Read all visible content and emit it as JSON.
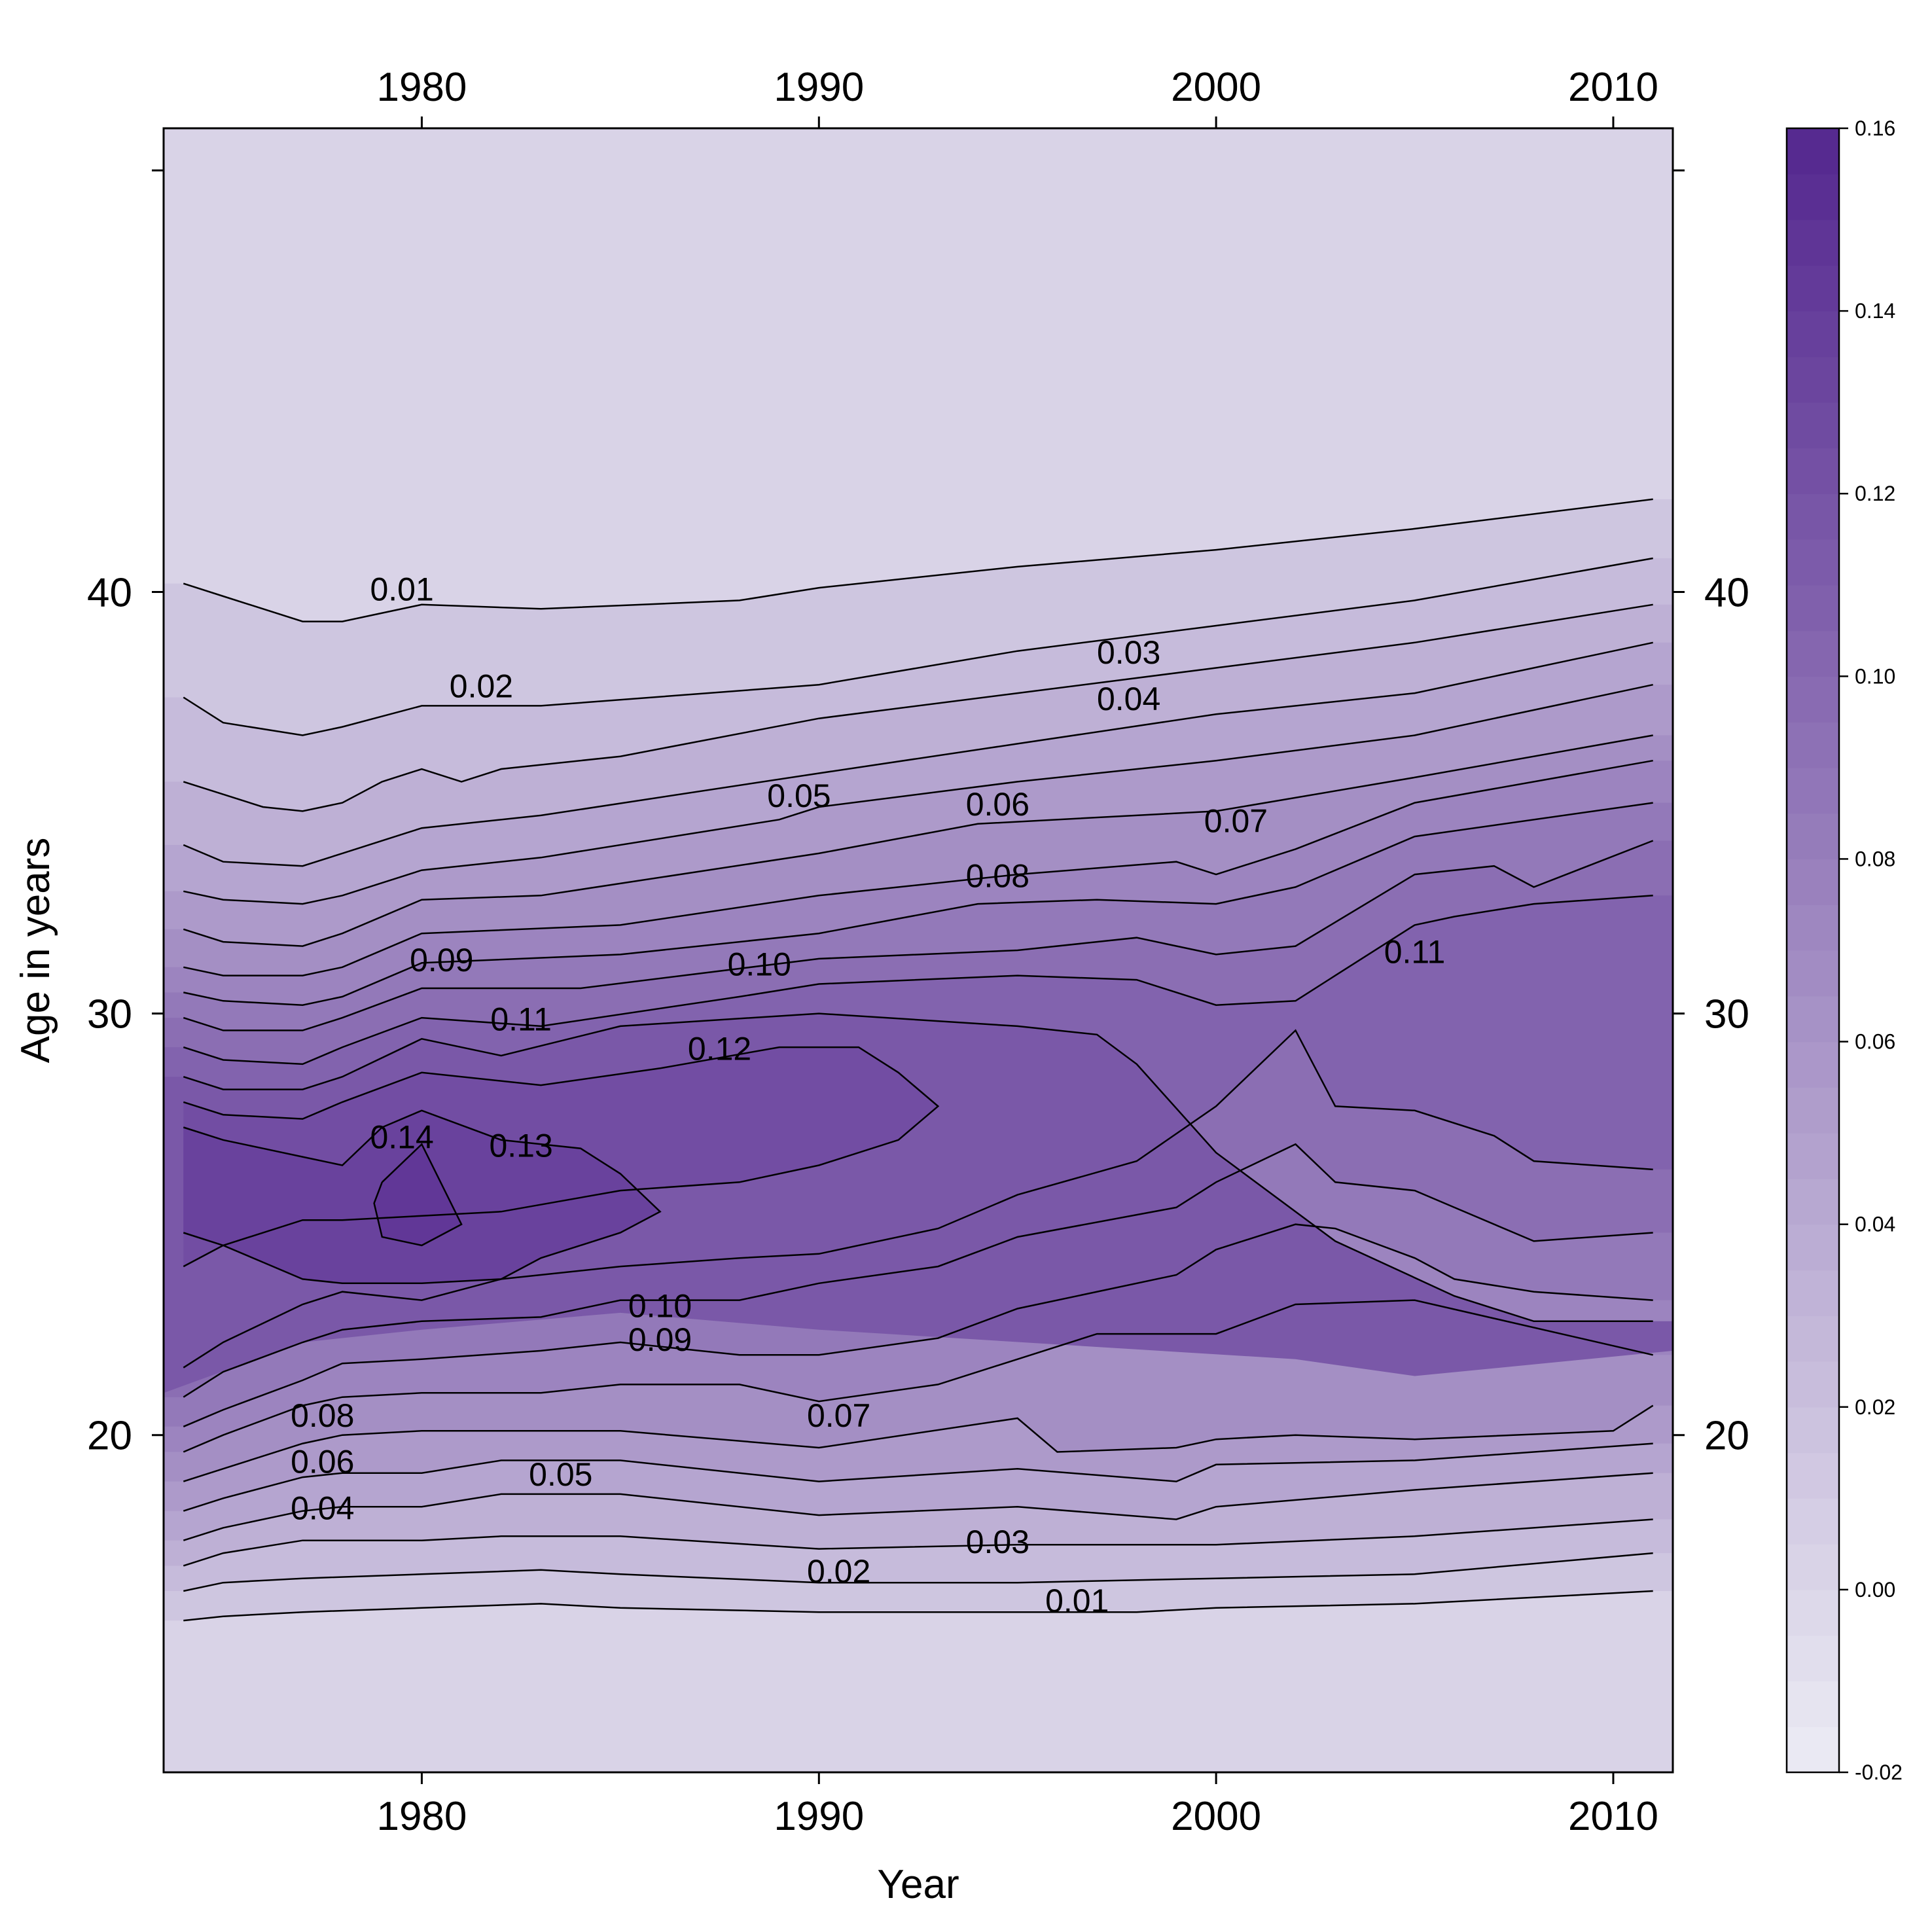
{
  "chart_data": {
    "type": "heatmap",
    "subtype": "contour-filled level plot",
    "xlabel": "Year",
    "ylabel": "Age in years",
    "xlim": [
      1973.5,
      2011.5
    ],
    "ylim": [
      12,
      51
    ],
    "x_ticks": [
      1980,
      1990,
      2000,
      2010
    ],
    "x_tick_labels": [
      "1980",
      "1990",
      "2000",
      "2010"
    ],
    "y_ticks": [
      20,
      30,
      40,
      50
    ],
    "y_tick_labels": [
      "20",
      "30",
      "40",
      ""
    ],
    "colorkey": {
      "position": "right",
      "range": [
        -0.02,
        0.16
      ],
      "ticks": [
        0.16,
        0.14,
        0.12,
        0.1,
        0.08,
        0.06,
        0.04,
        0.02,
        0.0,
        -0.02
      ],
      "tick_labels": [
        "0.16",
        "0.14",
        "0.12",
        "0.10",
        "0.08",
        "0.06",
        "0.04",
        "0.02",
        "0.00",
        "-0.02"
      ],
      "color_low": "#ececf4",
      "color_high": "#54278f"
    },
    "contours": [
      {
        "level": 0.01,
        "label": "0.01",
        "x": [
          1974,
          1975,
          1977,
          1978,
          1980,
          1983,
          1988,
          1990,
          1995,
          2000,
          2005,
          2011
        ],
        "y": [
          40.2,
          39.9,
          39.3,
          39.3,
          39.7,
          39.6,
          39.8,
          40.1,
          40.6,
          41.0,
          41.5,
          42.2
        ]
      },
      {
        "level": 0.02,
        "label": "0.02",
        "x": [
          1974,
          1975,
          1977,
          1978,
          1980,
          1983,
          1990,
          1995,
          2000,
          2005,
          2011
        ],
        "y": [
          37.5,
          36.9,
          36.6,
          36.8,
          37.3,
          37.3,
          37.8,
          38.6,
          39.2,
          39.8,
          40.8
        ]
      },
      {
        "level": 0.03,
        "label": "0.03",
        "x": [
          1974,
          1975,
          1976,
          1977,
          1978,
          1979,
          1980,
          1981,
          1982,
          1985,
          1990,
          1995,
          2000,
          2005,
          2011
        ],
        "y": [
          35.5,
          35.2,
          34.9,
          34.8,
          35.0,
          35.5,
          35.8,
          35.5,
          35.8,
          36.1,
          37.0,
          37.6,
          38.2,
          38.8,
          39.7
        ]
      },
      {
        "level": 0.04,
        "label": "0.04",
        "x": [
          1974,
          1975,
          1977,
          1978,
          1980,
          1983,
          1990,
          1995,
          2000,
          2005,
          2011
        ],
        "y": [
          34.0,
          33.6,
          33.5,
          33.8,
          34.4,
          34.7,
          35.7,
          36.4,
          37.1,
          37.6,
          38.8
        ]
      },
      {
        "level": 0.05,
        "label": "0.05",
        "x": [
          1974,
          1975,
          1977,
          1978,
          1980,
          1983,
          1989,
          1990,
          1995,
          2000,
          2005,
          2011
        ],
        "y": [
          32.9,
          32.7,
          32.6,
          32.8,
          33.4,
          33.7,
          34.6,
          34.9,
          35.5,
          36.0,
          36.6,
          37.8
        ]
      },
      {
        "level": 0.06,
        "label": "0.06",
        "x": [
          1974,
          1975,
          1977,
          1978,
          1980,
          1983,
          1990,
          1994,
          2000,
          2005,
          2011
        ],
        "y": [
          32.0,
          31.7,
          31.6,
          31.9,
          32.7,
          32.8,
          33.8,
          34.5,
          34.8,
          35.6,
          36.6
        ]
      },
      {
        "level": 0.07,
        "label": "0.07",
        "x": [
          1974,
          1975,
          1977,
          1978,
          1980,
          1985,
          1990,
          1995,
          1999,
          2000,
          2002,
          2005,
          2011
        ],
        "y": [
          31.1,
          30.9,
          30.9,
          31.1,
          31.9,
          32.1,
          32.8,
          33.3,
          33.6,
          33.3,
          33.9,
          35.0,
          36.0
        ]
      },
      {
        "level": 0.08,
        "label": "0.08",
        "x": [
          1974,
          1975,
          1977,
          1978,
          1980,
          1985,
          1990,
          1994,
          1997,
          2000,
          2002,
          2005,
          2011
        ],
        "y": [
          30.5,
          30.3,
          30.2,
          30.4,
          31.2,
          31.4,
          31.9,
          32.6,
          32.7,
          32.6,
          33.0,
          34.2,
          35.0
        ]
      },
      {
        "level": 0.09,
        "label": "0.09",
        "x": [
          1974,
          1975,
          1977,
          1978,
          1980,
          1984,
          1990,
          1995,
          1998,
          2000,
          2002,
          2005,
          2007,
          2008,
          2011
        ],
        "y": [
          29.9,
          29.6,
          29.6,
          29.9,
          30.6,
          30.6,
          31.3,
          31.5,
          31.8,
          31.4,
          31.6,
          33.3,
          33.5,
          33.0,
          34.1
        ]
      },
      {
        "level": 0.1,
        "label": "0.10",
        "x": [
          1974,
          1975,
          1977,
          1978,
          1980,
          1983,
          1988,
          1990,
          1995,
          1998,
          2000,
          2002,
          2003,
          2005,
          2006,
          2008,
          2011
        ],
        "y": [
          29.2,
          28.9,
          28.8,
          29.2,
          29.9,
          29.7,
          30.4,
          30.7,
          30.9,
          30.8,
          30.2,
          30.3,
          30.9,
          32.1,
          32.3,
          32.6,
          32.8
        ]
      },
      {
        "level": 0.11,
        "label": "0.11",
        "x": [
          1974,
          1975,
          1977,
          1978,
          1980,
          1982,
          1985,
          1990,
          1995,
          1997,
          1998,
          2000,
          2003,
          2006,
          2008,
          2011
        ],
        "y": [
          28.5,
          28.2,
          28.2,
          28.5,
          29.4,
          29.0,
          29.7,
          30.0,
          29.7,
          29.5,
          28.8,
          26.7,
          24.6,
          23.3,
          22.7,
          22.7
        ]
      },
      {
        "level": 0.12,
        "label": "0.12",
        "x": [
          1974,
          1975,
          1977,
          1978,
          1980,
          1983,
          1986,
          1989,
          1991,
          1992,
          1993,
          1992,
          1990,
          1988,
          1985,
          1982,
          1980,
          1978,
          1977,
          1975,
          1974
        ],
        "y": [
          27.9,
          27.6,
          27.5,
          27.9,
          28.6,
          28.3,
          28.7,
          29.2,
          29.2,
          28.6,
          27.8,
          27.0,
          26.4,
          26.0,
          25.8,
          25.3,
          25.2,
          25.1,
          25.1,
          24.5,
          24.0
        ]
      },
      {
        "level": 0.13,
        "label": "0.13",
        "x": [
          1974,
          1975,
          1976,
          1977,
          1978,
          1979,
          1980,
          1982,
          1984,
          1985,
          1986,
          1985,
          1983,
          1982,
          1980,
          1979,
          1978,
          1977,
          1976,
          1975,
          1974
        ],
        "y": [
          27.3,
          27.0,
          26.8,
          26.6,
          26.4,
          27.3,
          27.7,
          27.0,
          26.8,
          26.2,
          25.3,
          24.8,
          24.2,
          23.7,
          23.6,
          23.6,
          23.6,
          23.7,
          24.1,
          24.5,
          24.8
        ]
      },
      {
        "level": 0.14,
        "label": "0.14",
        "x": [
          1979,
          1980,
          1981,
          1980,
          1979,
          1978.8,
          1979
        ],
        "y": [
          26.0,
          26.9,
          25.0,
          24.5,
          24.7,
          25.5,
          26.0
        ]
      }
    ],
    "contour_labels": [
      {
        "text": "0.01",
        "x": 1979.5,
        "y": 39.8
      },
      {
        "text": "0.02",
        "x": 1981.5,
        "y": 37.5
      },
      {
        "text": "0.03",
        "x": 1997.8,
        "y": 38.3
      },
      {
        "text": "0.04",
        "x": 1997.8,
        "y": 37.2
      },
      {
        "text": "0.05",
        "x": 1989.5,
        "y": 34.9
      },
      {
        "text": "0.06",
        "x": 1994.5,
        "y": 34.7
      },
      {
        "text": "0.07",
        "x": 2000.5,
        "y": 34.3
      },
      {
        "text": "0.08",
        "x": 1994.5,
        "y": 33.0
      },
      {
        "text": "0.09",
        "x": 1980.5,
        "y": 31.0
      },
      {
        "text": "0.10",
        "x": 1988.5,
        "y": 30.9
      },
      {
        "text": "0.11",
        "x": 1982.5,
        "y": 29.6
      },
      {
        "text": "0.12",
        "x": 1987.5,
        "y": 28.9
      },
      {
        "text": "0.14",
        "x": 1979.5,
        "y": 26.8
      },
      {
        "text": "0.13",
        "x": 1982.5,
        "y": 26.6
      },
      {
        "text": "0.11",
        "x": 2005.0,
        "y": 31.2
      },
      {
        "text": "0.10",
        "x": 1986.0,
        "y": 22.8
      },
      {
        "text": "0.09",
        "x": 1986.0,
        "y": 22.0
      },
      {
        "text": "0.08",
        "x": 1977.5,
        "y": 20.2
      },
      {
        "text": "0.07",
        "x": 1990.5,
        "y": 20.2
      },
      {
        "text": "0.06",
        "x": 1977.5,
        "y": 19.1
      },
      {
        "text": "0.05",
        "x": 1983.5,
        "y": 18.8
      },
      {
        "text": "0.04",
        "x": 1977.5,
        "y": 18.0
      },
      {
        "text": "0.03",
        "x": 1994.5,
        "y": 17.2
      },
      {
        "text": "0.02",
        "x": 1990.5,
        "y": 16.5
      },
      {
        "text": "0.01",
        "x": 1996.5,
        "y": 15.8
      }
    ],
    "lower_contours": [
      {
        "level": 0.01,
        "x": [
          1974,
          1975,
          1977,
          1980,
          1983,
          1985,
          1990,
          1995,
          1998,
          2000,
          2005,
          2011
        ],
        "y": [
          15.6,
          15.7,
          15.8,
          15.9,
          16.0,
          15.9,
          15.8,
          15.8,
          15.8,
          15.9,
          16.0,
          16.3
        ]
      },
      {
        "level": 0.02,
        "x": [
          1974,
          1975,
          1977,
          1980,
          1983,
          1985,
          1990,
          1995,
          2000,
          2005,
          2011
        ],
        "y": [
          16.3,
          16.5,
          16.6,
          16.7,
          16.8,
          16.7,
          16.5,
          16.5,
          16.6,
          16.7,
          17.2
        ]
      },
      {
        "level": 0.03,
        "x": [
          1974,
          1975,
          1977,
          1980,
          1982,
          1985,
          1990,
          1995,
          2000,
          2005,
          2011
        ],
        "y": [
          16.9,
          17.2,
          17.5,
          17.5,
          17.6,
          17.6,
          17.3,
          17.4,
          17.4,
          17.6,
          18.0
        ]
      },
      {
        "level": 0.04,
        "x": [
          1974,
          1975,
          1977,
          1978,
          1980,
          1982,
          1985,
          1990,
          1995,
          1999,
          2000,
          2005,
          2011
        ],
        "y": [
          17.5,
          17.8,
          18.2,
          18.3,
          18.3,
          18.6,
          18.6,
          18.1,
          18.3,
          18.0,
          18.3,
          18.7,
          19.1
        ]
      },
      {
        "level": 0.05,
        "x": [
          1974,
          1975,
          1977,
          1978,
          1980,
          1982,
          1985,
          1990,
          1995,
          1999,
          2000,
          2005,
          2011
        ],
        "y": [
          18.2,
          18.5,
          19.0,
          19.1,
          19.1,
          19.4,
          19.4,
          18.9,
          19.2,
          18.9,
          19.3,
          19.4,
          19.8
        ]
      },
      {
        "level": 0.06,
        "x": [
          1974,
          1975,
          1977,
          1978,
          1980,
          1985,
          1990,
          1995,
          1996,
          1999,
          2000,
          2002,
          2005,
          2010,
          2011
        ],
        "y": [
          18.9,
          19.2,
          19.8,
          20.0,
          20.1,
          20.1,
          19.7,
          20.4,
          19.6,
          19.7,
          19.9,
          20.0,
          19.9,
          20.1,
          20.7
        ]
      },
      {
        "level": 0.07,
        "x": [
          1974,
          1975,
          1977,
          1978,
          1980,
          1983,
          1985,
          1988,
          1990,
          1993,
          1995,
          1997,
          1999,
          2000,
          2002,
          2005,
          2011
        ],
        "y": [
          19.6,
          20.0,
          20.7,
          20.9,
          21.0,
          21.0,
          21.2,
          21.2,
          20.8,
          21.2,
          21.8,
          22.4,
          22.4,
          22.4,
          23.1,
          23.2,
          21.9
        ]
      },
      {
        "level": 0.08,
        "x": [
          1974,
          1975,
          1977,
          1978,
          1980,
          1983,
          1985,
          1988,
          1990,
          1993,
          1995,
          1999,
          2000,
          2002,
          2003,
          2005,
          2006,
          2008,
          2011
        ],
        "y": [
          20.2,
          20.6,
          21.3,
          21.7,
          21.8,
          22.0,
          22.2,
          21.9,
          21.9,
          22.3,
          23.0,
          23.8,
          24.4,
          25.0,
          24.9,
          24.2,
          23.7,
          23.4,
          23.2
        ]
      },
      {
        "level": 0.09,
        "x": [
          1974,
          1975,
          1977,
          1978,
          1980,
          1983,
          1985,
          1988,
          1990,
          1993,
          1995,
          1999,
          2000,
          2002,
          2003,
          2005,
          2006,
          2008,
          2011
        ],
        "y": [
          20.9,
          21.5,
          22.2,
          22.5,
          22.7,
          22.8,
          23.2,
          23.2,
          23.6,
          24.0,
          24.7,
          25.4,
          26.0,
          26.9,
          26.0,
          25.8,
          25.4,
          24.6,
          24.8
        ]
      },
      {
        "level": 0.1,
        "x": [
          1974,
          1975,
          1977,
          1978,
          1980,
          1982,
          1985,
          1988,
          1990,
          1993,
          1995,
          1998,
          2000,
          2002,
          2003,
          2005,
          2007,
          2008,
          2011
        ],
        "y": [
          21.6,
          22.2,
          23.1,
          23.4,
          23.2,
          23.7,
          24.0,
          24.2,
          24.3,
          24.9,
          25.7,
          26.5,
          27.8,
          29.6,
          27.8,
          27.7,
          27.1,
          26.5,
          26.3
        ]
      }
    ]
  }
}
